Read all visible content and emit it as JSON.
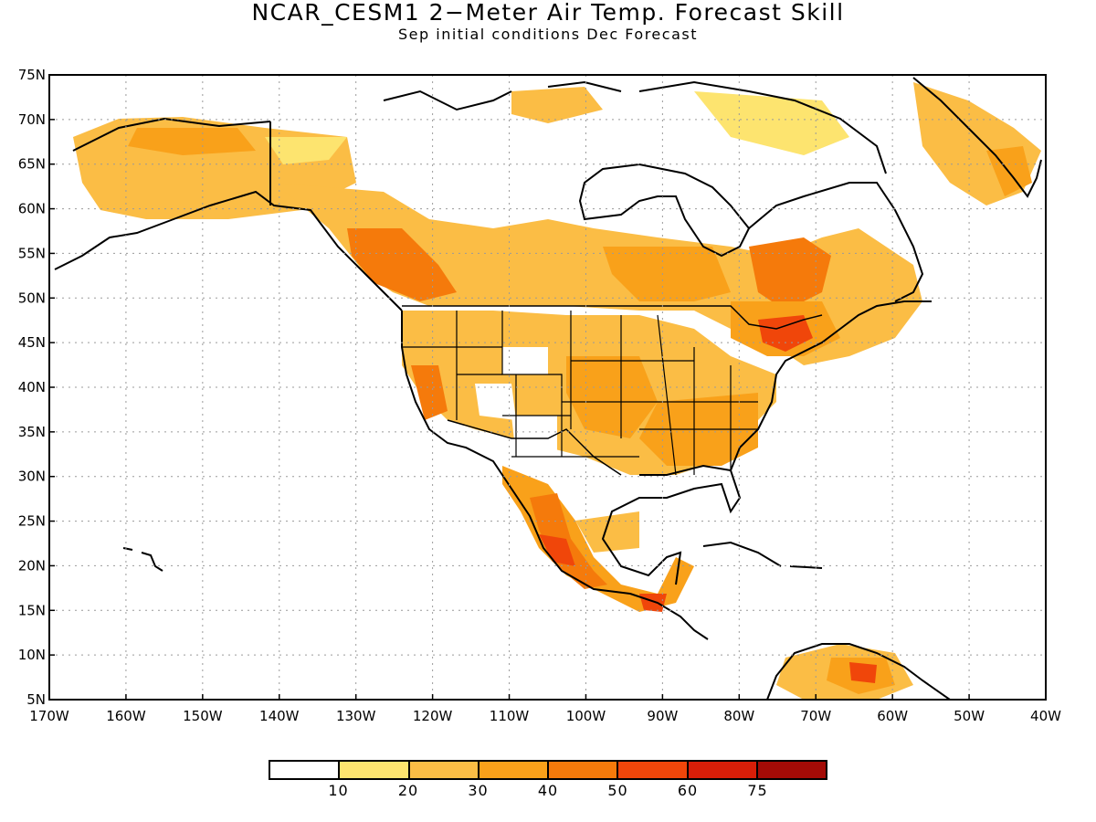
{
  "title": "NCAR_CESM1 2−Meter Air Temp. Forecast Skill",
  "subtitle": "Sep initial conditions  Dec Forecast",
  "map": {
    "lat_ticks": [
      "75N",
      "70N",
      "65N",
      "60N",
      "55N",
      "50N",
      "45N",
      "40N",
      "35N",
      "30N",
      "25N",
      "20N",
      "15N",
      "10N",
      "5N"
    ],
    "lon_ticks": [
      "170W",
      "160W",
      "150W",
      "140W",
      "130W",
      "120W",
      "110W",
      "100W",
      "90W",
      "80W",
      "70W",
      "60W",
      "50W",
      "40W"
    ],
    "lat_range": [
      5,
      75
    ],
    "lon_range": [
      -170,
      -40
    ],
    "grid": true,
    "land_color": "#ffffff",
    "coastline_color": "#000000"
  },
  "legend": {
    "colors": [
      "#ffffff",
      "#fde46f",
      "#fbbd45",
      "#f9a11a",
      "#f57a0b",
      "#f0460a",
      "#d81e08",
      "#a40b06"
    ],
    "labels": [
      "10",
      "20",
      "30",
      "40",
      "50",
      "60",
      "75"
    ]
  },
  "skill_regions": [
    {
      "name": "Alaska",
      "level": 2
    },
    {
      "name": "Western Canada",
      "level": 3
    },
    {
      "name": "British Columbia",
      "level": 4
    },
    {
      "name": "Quebec",
      "level": 4
    },
    {
      "name": "Southeast US",
      "level": 3
    },
    {
      "name": "Southwest Mexico",
      "level": 5
    },
    {
      "name": "Northern South America",
      "level": 5
    },
    {
      "name": "Greenland",
      "level": 2
    }
  ]
}
